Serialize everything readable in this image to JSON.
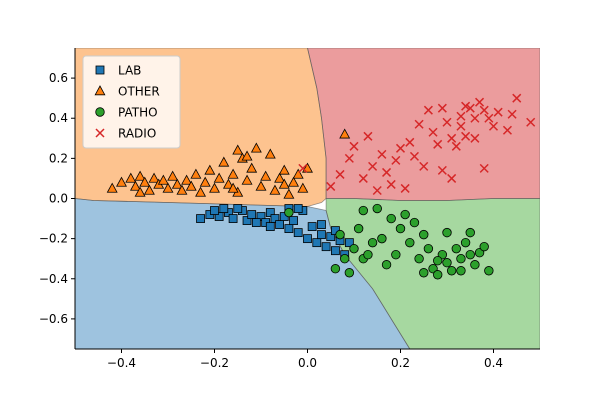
{
  "chart_data": {
    "type": "scatter",
    "title": "",
    "xlabel": "",
    "ylabel": "",
    "xlim": [
      -0.5,
      0.5
    ],
    "ylim": [
      -0.75,
      0.75
    ],
    "xticks": [
      -0.4,
      -0.2,
      0.0,
      0.2,
      0.4
    ],
    "yticks": [
      -0.6,
      -0.4,
      -0.2,
      0.0,
      0.2,
      0.4,
      0.6
    ],
    "xtick_labels": [
      "−0.4",
      "−0.2",
      "0.0",
      "0.2",
      "0.4"
    ],
    "ytick_labels": [
      "−0.6",
      "−0.4",
      "−0.2",
      "0.0",
      "0.2",
      "0.4",
      "0.6"
    ],
    "grid": false,
    "legend_position": "top-left",
    "decision_regions": [
      {
        "class": "LAB",
        "color": "#9ec3df",
        "polygon": [
          [
            -0.5,
            -0.75
          ],
          [
            -0.5,
            0.0
          ],
          [
            -0.46,
            -0.01
          ],
          [
            -0.3,
            -0.02
          ],
          [
            -0.15,
            -0.03
          ],
          [
            0.0,
            -0.04
          ],
          [
            0.04,
            -0.06
          ],
          [
            0.05,
            -0.15
          ],
          [
            0.08,
            -0.28
          ],
          [
            0.14,
            -0.45
          ],
          [
            0.18,
            -0.6
          ],
          [
            0.22,
            -0.75
          ]
        ]
      },
      {
        "class": "OTHER",
        "color": "#fdc38f",
        "polygon": [
          [
            -0.5,
            0.75
          ],
          [
            -0.5,
            0.0
          ],
          [
            -0.46,
            -0.01
          ],
          [
            -0.3,
            -0.02
          ],
          [
            -0.15,
            -0.03
          ],
          [
            0.0,
            -0.04
          ],
          [
            0.03,
            -0.02
          ],
          [
            0.04,
            0.0
          ],
          [
            0.04,
            0.2
          ],
          [
            0.03,
            0.4
          ],
          [
            0.02,
            0.55
          ],
          [
            0.0,
            0.75
          ]
        ]
      },
      {
        "class": "PATHO",
        "color": "#a6d8a0",
        "polygon": [
          [
            0.5,
            -0.75
          ],
          [
            0.22,
            -0.75
          ],
          [
            0.18,
            -0.6
          ],
          [
            0.14,
            -0.45
          ],
          [
            0.08,
            -0.28
          ],
          [
            0.05,
            -0.15
          ],
          [
            0.04,
            -0.06
          ],
          [
            0.04,
            0.0
          ],
          [
            0.1,
            0.0
          ],
          [
            0.2,
            -0.01
          ],
          [
            0.3,
            -0.01
          ],
          [
            0.4,
            0.0
          ],
          [
            0.5,
            0.0
          ]
        ]
      },
      {
        "class": "RADIO",
        "color": "#eb9c9d",
        "polygon": [
          [
            0.0,
            0.75
          ],
          [
            0.02,
            0.55
          ],
          [
            0.03,
            0.4
          ],
          [
            0.04,
            0.2
          ],
          [
            0.04,
            0.0
          ],
          [
            0.1,
            0.0
          ],
          [
            0.2,
            -0.01
          ],
          [
            0.3,
            -0.01
          ],
          [
            0.4,
            0.0
          ],
          [
            0.5,
            0.0
          ],
          [
            0.5,
            0.75
          ]
        ]
      }
    ],
    "series": [
      {
        "name": "LAB",
        "marker": "square",
        "color": "#1f77b4",
        "points": [
          [
            -0.23,
            -0.1
          ],
          [
            -0.21,
            -0.08
          ],
          [
            -0.19,
            -0.09
          ],
          [
            -0.17,
            -0.07
          ],
          [
            -0.16,
            -0.1
          ],
          [
            -0.14,
            -0.06
          ],
          [
            -0.13,
            -0.11
          ],
          [
            -0.12,
            -0.08
          ],
          [
            -0.1,
            -0.09
          ],
          [
            -0.09,
            -0.12
          ],
          [
            -0.08,
            -0.07
          ],
          [
            -0.07,
            -0.1
          ],
          [
            -0.06,
            -0.13
          ],
          [
            -0.05,
            -0.09
          ],
          [
            -0.04,
            -0.15
          ],
          [
            -0.03,
            -0.11
          ],
          [
            -0.02,
            -0.17
          ],
          [
            -0.01,
            -0.06
          ],
          [
            0.0,
            -0.2
          ],
          [
            0.01,
            -0.14
          ],
          [
            0.02,
            -0.22
          ],
          [
            0.03,
            -0.18
          ],
          [
            0.04,
            -0.24
          ],
          [
            0.05,
            -0.19
          ],
          [
            0.06,
            -0.26
          ],
          [
            0.07,
            -0.21
          ],
          [
            0.08,
            -0.28
          ],
          [
            0.09,
            -0.22
          ],
          [
            -0.15,
            -0.05
          ],
          [
            -0.11,
            -0.12
          ],
          [
            -0.18,
            -0.05
          ],
          [
            -0.2,
            -0.06
          ],
          [
            -0.08,
            -0.14
          ],
          [
            0.03,
            -0.13
          ],
          [
            -0.04,
            -0.05
          ],
          [
            -0.02,
            -0.05
          ],
          [
            0.06,
            -0.16
          ]
        ]
      },
      {
        "name": "OTHER",
        "marker": "triangle",
        "color": "#ff7f0e",
        "points": [
          [
            -0.42,
            0.05
          ],
          [
            -0.4,
            0.08
          ],
          [
            -0.38,
            0.1
          ],
          [
            -0.37,
            0.06
          ],
          [
            -0.36,
            0.11
          ],
          [
            -0.35,
            0.08
          ],
          [
            -0.34,
            0.04
          ],
          [
            -0.33,
            0.1
          ],
          [
            -0.32,
            0.07
          ],
          [
            -0.31,
            0.09
          ],
          [
            -0.3,
            0.05
          ],
          [
            -0.29,
            0.11
          ],
          [
            -0.28,
            0.07
          ],
          [
            -0.27,
            0.04
          ],
          [
            -0.26,
            0.09
          ],
          [
            -0.25,
            0.06
          ],
          [
            -0.24,
            0.12
          ],
          [
            -0.23,
            0.03
          ],
          [
            -0.22,
            0.08
          ],
          [
            -0.21,
            0.14
          ],
          [
            -0.2,
            0.05
          ],
          [
            -0.19,
            0.1
          ],
          [
            -0.18,
            0.18
          ],
          [
            -0.17,
            0.07
          ],
          [
            -0.16,
            0.12
          ],
          [
            -0.15,
            0.03
          ],
          [
            -0.14,
            0.2
          ],
          [
            -0.13,
            0.09
          ],
          [
            -0.12,
            0.15
          ],
          [
            -0.11,
            0.25
          ],
          [
            -0.1,
            0.06
          ],
          [
            -0.09,
            0.11
          ],
          [
            -0.08,
            0.22
          ],
          [
            -0.07,
            0.04
          ],
          [
            -0.06,
            0.1
          ],
          [
            -0.05,
            0.14
          ],
          [
            -0.04,
            0.02
          ],
          [
            -0.03,
            0.08
          ],
          [
            -0.02,
            0.12
          ],
          [
            -0.01,
            0.05
          ],
          [
            0.0,
            0.15
          ],
          [
            -0.15,
            0.24
          ],
          [
            -0.13,
            0.21
          ],
          [
            0.08,
            0.32
          ],
          [
            -0.05,
            0.07
          ],
          [
            -0.36,
            0.03
          ],
          [
            -0.16,
            0.05
          ]
        ]
      },
      {
        "name": "PATHO",
        "marker": "circle",
        "color": "#2ca02c",
        "points": [
          [
            0.12,
            -0.06
          ],
          [
            0.15,
            -0.05
          ],
          [
            0.18,
            -0.1
          ],
          [
            0.2,
            -0.15
          ],
          [
            0.22,
            -0.22
          ],
          [
            0.24,
            -0.3
          ],
          [
            0.25,
            -0.18
          ],
          [
            0.26,
            -0.25
          ],
          [
            0.27,
            -0.35
          ],
          [
            0.28,
            -0.38
          ],
          [
            0.29,
            -0.28
          ],
          [
            0.3,
            -0.32
          ],
          [
            0.31,
            -0.36
          ],
          [
            0.32,
            -0.25
          ],
          [
            0.33,
            -0.3
          ],
          [
            0.34,
            -0.22
          ],
          [
            0.35,
            -0.28
          ],
          [
            0.36,
            -0.33
          ],
          [
            0.37,
            -0.27
          ],
          [
            0.38,
            -0.24
          ],
          [
            0.39,
            -0.36
          ],
          [
            0.1,
            -0.25
          ],
          [
            0.12,
            -0.3
          ],
          [
            0.14,
            -0.22
          ],
          [
            0.16,
            -0.2
          ],
          [
            0.08,
            -0.3
          ],
          [
            0.06,
            -0.35
          ],
          [
            0.09,
            -0.37
          ],
          [
            0.13,
            -0.28
          ],
          [
            0.17,
            -0.33
          ],
          [
            0.21,
            -0.08
          ],
          [
            0.23,
            -0.12
          ],
          [
            0.19,
            -0.28
          ],
          [
            0.3,
            -0.17
          ],
          [
            -0.04,
            -0.07
          ],
          [
            0.07,
            -0.18
          ],
          [
            0.11,
            -0.15
          ],
          [
            0.25,
            -0.37
          ],
          [
            0.28,
            -0.31
          ],
          [
            0.33,
            -0.36
          ],
          [
            0.35,
            -0.17
          ]
        ]
      },
      {
        "name": "RADIO",
        "marker": "x",
        "color": "#d62728",
        "points": [
          [
            -0.01,
            0.15
          ],
          [
            0.05,
            0.06
          ],
          [
            0.07,
            0.12
          ],
          [
            0.09,
            0.2
          ],
          [
            0.1,
            0.26
          ],
          [
            0.12,
            0.1
          ],
          [
            0.13,
            0.31
          ],
          [
            0.14,
            0.16
          ],
          [
            0.15,
            0.04
          ],
          [
            0.16,
            0.22
          ],
          [
            0.17,
            0.13
          ],
          [
            0.18,
            0.07
          ],
          [
            0.19,
            0.19
          ],
          [
            0.2,
            0.25
          ],
          [
            0.21,
            0.05
          ],
          [
            0.22,
            0.28
          ],
          [
            0.23,
            0.21
          ],
          [
            0.24,
            0.37
          ],
          [
            0.25,
            0.16
          ],
          [
            0.26,
            0.44
          ],
          [
            0.27,
            0.33
          ],
          [
            0.28,
            0.27
          ],
          [
            0.29,
            0.45
          ],
          [
            0.3,
            0.38
          ],
          [
            0.31,
            0.1
          ],
          [
            0.32,
            0.26
          ],
          [
            0.33,
            0.41
          ],
          [
            0.34,
            0.31
          ],
          [
            0.35,
            0.45
          ],
          [
            0.36,
            0.3
          ],
          [
            0.37,
            0.48
          ],
          [
            0.38,
            0.15
          ],
          [
            0.39,
            0.4
          ],
          [
            0.4,
            0.36
          ],
          [
            0.41,
            0.43
          ],
          [
            0.43,
            0.34
          ],
          [
            0.45,
            0.5
          ],
          [
            0.48,
            0.38
          ],
          [
            0.44,
            0.42
          ],
          [
            0.36,
            0.4
          ],
          [
            0.33,
            0.36
          ],
          [
            0.29,
            0.14
          ],
          [
            0.38,
            0.44
          ],
          [
            0.34,
            0.46
          ],
          [
            0.31,
            0.3
          ]
        ]
      }
    ]
  }
}
